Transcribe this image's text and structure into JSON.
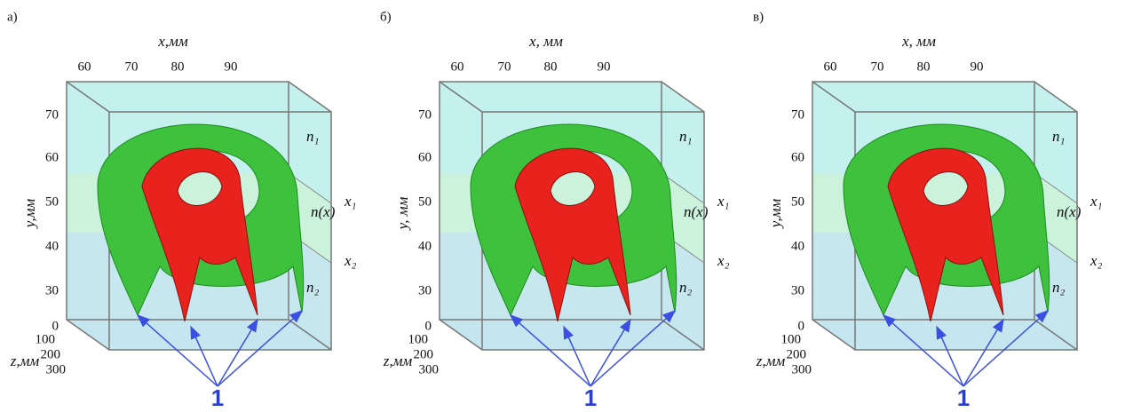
{
  "panels": [
    {
      "label": "а)",
      "x_axis_label": "x,мм",
      "x_ticks": [
        "60",
        "70",
        "80",
        "90"
      ],
      "y_axis_label": "y,мм",
      "y_ticks": [
        "70",
        "60",
        "50",
        "40",
        "30",
        "0"
      ],
      "z_axis_label": "z,мм",
      "z_ticks": [
        "100",
        "200",
        "300"
      ],
      "region_labels": [
        "n₁",
        "x₁",
        "n(x)",
        "x₂",
        "n₂"
      ],
      "callout": "1"
    },
    {
      "label": "б)",
      "x_axis_label": "x, мм",
      "x_ticks": [
        "60",
        "70",
        "80",
        "90"
      ],
      "y_axis_label": "y, мм",
      "y_ticks": [
        "70",
        "60",
        "50",
        "40",
        "30",
        "0"
      ],
      "z_axis_label": "z,мм",
      "z_ticks": [
        "100",
        "200",
        "300"
      ],
      "region_labels": [
        "n₁",
        "x₁",
        "n(x)",
        "x₂",
        "n₂"
      ],
      "callout": "1"
    },
    {
      "label": "в)",
      "x_axis_label": "x, мм",
      "x_ticks": [
        "60",
        "70",
        "80",
        "90"
      ],
      "y_axis_label": "y,мм",
      "y_ticks": [
        "70",
        "60",
        "50",
        "40",
        "30",
        "0"
      ],
      "z_axis_label": "z,мм",
      "z_ticks": [
        "100",
        "200",
        "300"
      ],
      "region_labels": [
        "n₁",
        "x₁",
        "n(x)",
        "x₂",
        "n₂"
      ],
      "callout": "1"
    }
  ]
}
